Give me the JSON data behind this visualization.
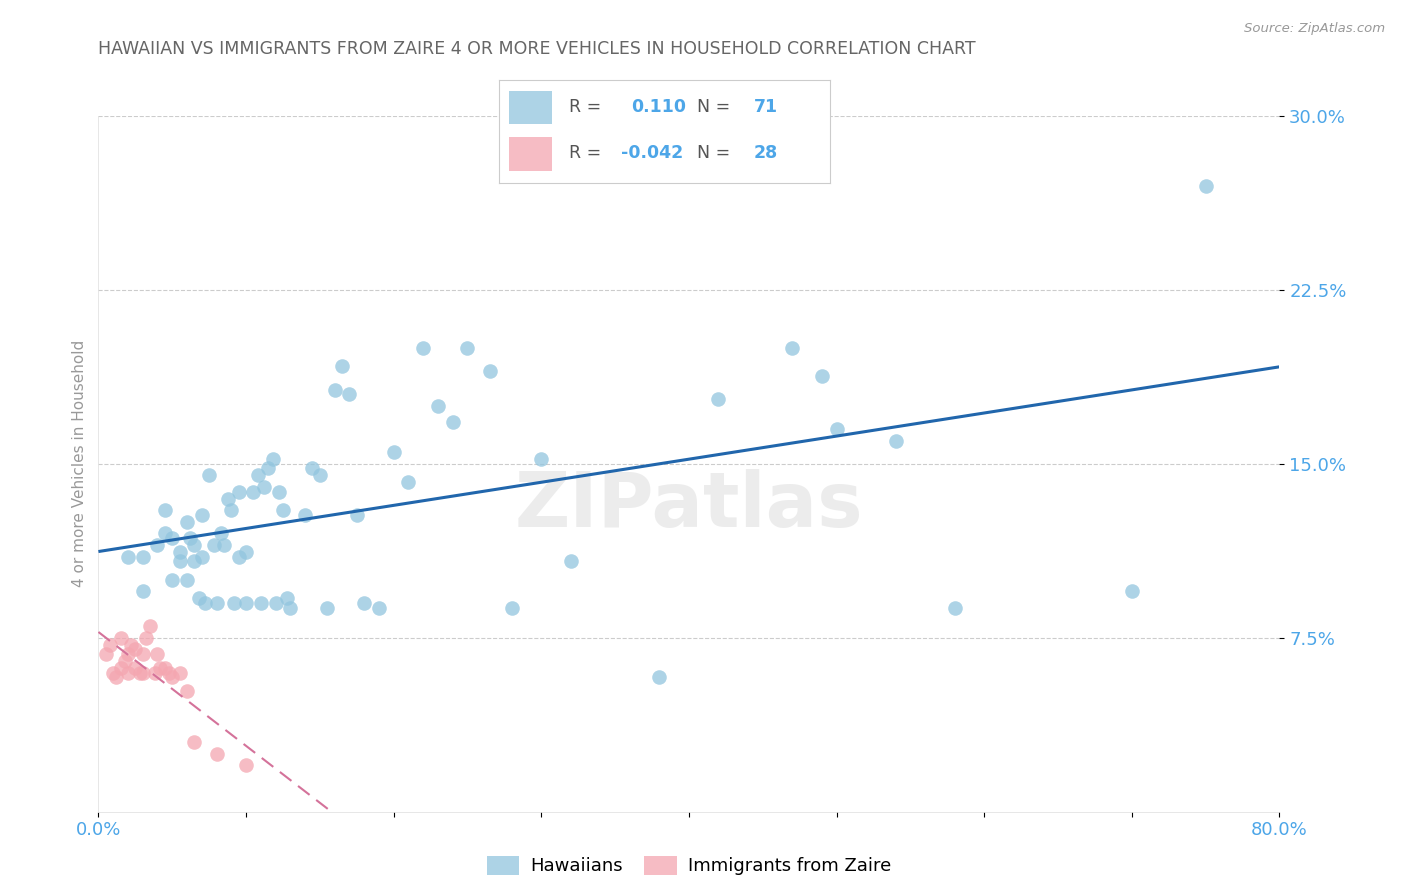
{
  "title": "HAWAIIAN VS IMMIGRANTS FROM ZAIRE 4 OR MORE VEHICLES IN HOUSEHOLD CORRELATION CHART",
  "source": "Source: ZipAtlas.com",
  "ylabel": "4 or more Vehicles in Household",
  "xlim": [
    0.0,
    0.8
  ],
  "ylim": [
    0.0,
    0.3
  ],
  "xticks": [
    0.0,
    0.1,
    0.2,
    0.3,
    0.4,
    0.5,
    0.6,
    0.7,
    0.8
  ],
  "xticklabels": [
    "0.0%",
    "",
    "",
    "",
    "",
    "",
    "",
    "",
    "80.0%"
  ],
  "yticks": [
    0.075,
    0.15,
    0.225,
    0.3
  ],
  "yticklabels": [
    "7.5%",
    "15.0%",
    "22.5%",
    "30.0%"
  ],
  "hawaiians_color": "#92c5de",
  "zaire_color": "#f4a6b0",
  "regression_blue": "#2166ac",
  "regression_pink": "#d4729a",
  "watermark": "ZIPatlas",
  "hawaiians_x": [
    0.02,
    0.03,
    0.03,
    0.04,
    0.045,
    0.045,
    0.05,
    0.05,
    0.055,
    0.055,
    0.06,
    0.06,
    0.062,
    0.065,
    0.065,
    0.068,
    0.07,
    0.07,
    0.072,
    0.075,
    0.078,
    0.08,
    0.083,
    0.085,
    0.088,
    0.09,
    0.092,
    0.095,
    0.095,
    0.1,
    0.1,
    0.105,
    0.108,
    0.11,
    0.112,
    0.115,
    0.118,
    0.12,
    0.122,
    0.125,
    0.128,
    0.13,
    0.14,
    0.145,
    0.15,
    0.155,
    0.16,
    0.165,
    0.17,
    0.175,
    0.18,
    0.19,
    0.2,
    0.21,
    0.22,
    0.23,
    0.24,
    0.25,
    0.265,
    0.28,
    0.3,
    0.32,
    0.38,
    0.42,
    0.47,
    0.49,
    0.5,
    0.54,
    0.58,
    0.7,
    0.75
  ],
  "hawaiians_y": [
    0.11,
    0.095,
    0.11,
    0.115,
    0.13,
    0.12,
    0.1,
    0.118,
    0.112,
    0.108,
    0.125,
    0.1,
    0.118,
    0.115,
    0.108,
    0.092,
    0.128,
    0.11,
    0.09,
    0.145,
    0.115,
    0.09,
    0.12,
    0.115,
    0.135,
    0.13,
    0.09,
    0.138,
    0.11,
    0.09,
    0.112,
    0.138,
    0.145,
    0.09,
    0.14,
    0.148,
    0.152,
    0.09,
    0.138,
    0.13,
    0.092,
    0.088,
    0.128,
    0.148,
    0.145,
    0.088,
    0.182,
    0.192,
    0.18,
    0.128,
    0.09,
    0.088,
    0.155,
    0.142,
    0.2,
    0.175,
    0.168,
    0.2,
    0.19,
    0.088,
    0.152,
    0.108,
    0.058,
    0.178,
    0.2,
    0.188,
    0.165,
    0.16,
    0.088,
    0.095,
    0.27
  ],
  "zaire_x": [
    0.005,
    0.008,
    0.01,
    0.012,
    0.015,
    0.015,
    0.018,
    0.02,
    0.02,
    0.022,
    0.025,
    0.025,
    0.028,
    0.03,
    0.03,
    0.032,
    0.035,
    0.038,
    0.04,
    0.042,
    0.045,
    0.048,
    0.05,
    0.055,
    0.06,
    0.065,
    0.08,
    0.1
  ],
  "zaire_y": [
    0.068,
    0.072,
    0.06,
    0.058,
    0.075,
    0.062,
    0.065,
    0.068,
    0.06,
    0.072,
    0.07,
    0.062,
    0.06,
    0.068,
    0.06,
    0.075,
    0.08,
    0.06,
    0.068,
    0.062,
    0.062,
    0.06,
    0.058,
    0.06,
    0.052,
    0.03,
    0.025,
    0.02
  ],
  "bg_color": "#ffffff",
  "grid_color": "#cccccc",
  "tick_label_color": "#4da6e8",
  "title_color": "#666666"
}
